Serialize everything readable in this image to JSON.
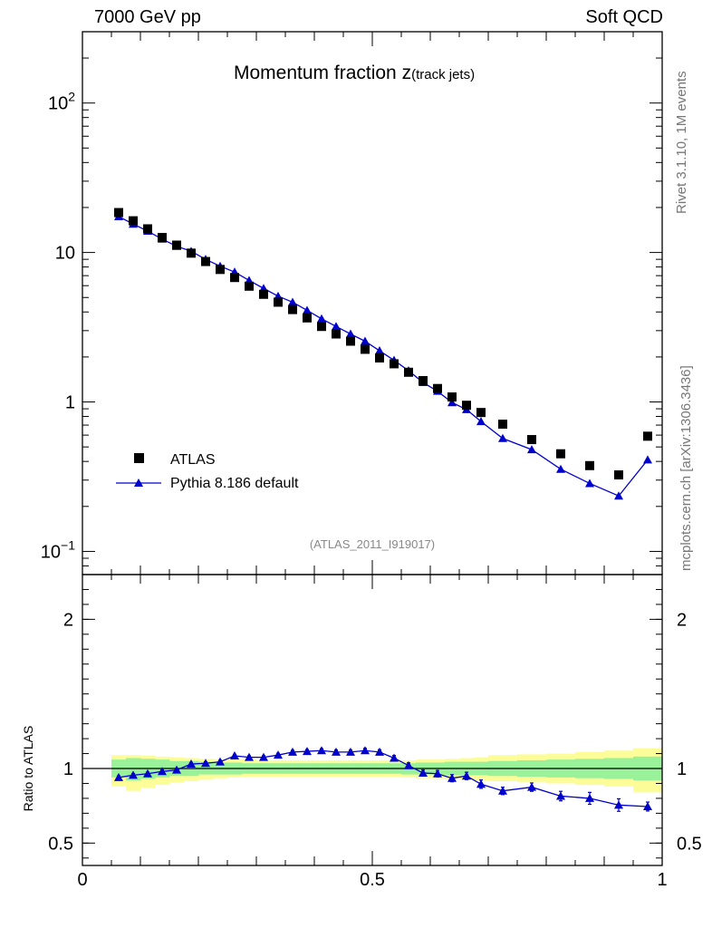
{
  "header": {
    "left": "7000 GeV pp",
    "right": "Soft QCD"
  },
  "side_labels": {
    "top": "Rivet 3.1.10,  1M events",
    "bottom": "mcplots.cern.ch [arXiv:1306.3436]"
  },
  "colors": {
    "data": "#000000",
    "mc": "#0000cc",
    "band_inner": "#99f299",
    "band_outer": "#fcfc99",
    "watermark": "#888888"
  },
  "chart_data": [
    {
      "type": "scatter",
      "title_main": "Momentum fraction ",
      "title_var": "z",
      "title_sub": "(track jets)",
      "watermark": "(ATLAS_2011_I919017)",
      "yscale": "log",
      "xlim": [
        0,
        1
      ],
      "ylim": [
        0.07,
        300
      ],
      "y_ticks": [
        {
          "v": 0.1,
          "base": "10",
          "exp": "−1"
        },
        {
          "v": 1,
          "label": "1"
        },
        {
          "v": 10,
          "label": "10"
        },
        {
          "v": 100,
          "base": "10",
          "exp": "2"
        }
      ],
      "legend": {
        "position": "middle-left",
        "entries": [
          "ATLAS",
          "Pythia 8.186 default"
        ]
      },
      "x": [
        0.0625,
        0.0875,
        0.1125,
        0.1375,
        0.1625,
        0.1875,
        0.2125,
        0.2375,
        0.2625,
        0.2875,
        0.3125,
        0.3375,
        0.3625,
        0.3875,
        0.4125,
        0.4375,
        0.4625,
        0.4875,
        0.5125,
        0.5375,
        0.5625,
        0.5875,
        0.6125,
        0.6375,
        0.6625,
        0.6875,
        0.725,
        0.775,
        0.825,
        0.875,
        0.925,
        0.975
      ],
      "series": [
        {
          "name": "ATLAS",
          "marker": "square",
          "values": [
            18.5,
            16.3,
            14.4,
            12.6,
            11.2,
            9.9,
            8.7,
            7.7,
            6.8,
            5.95,
            5.25,
            4.65,
            4.15,
            3.65,
            3.2,
            2.85,
            2.55,
            2.25,
            1.97,
            1.8,
            1.58,
            1.39,
            1.23,
            1.08,
            0.95,
            0.85,
            0.71,
            0.56,
            0.45,
            0.375,
            0.325,
            0.59
          ]
        },
        {
          "name": "Pythia 8.186 default",
          "marker": "triangle",
          "values": [
            17.4,
            15.5,
            13.9,
            12.3,
            11.0,
            10.2,
            9.0,
            8.1,
            7.4,
            6.5,
            5.75,
            5.1,
            4.65,
            4.1,
            3.6,
            3.2,
            2.85,
            2.55,
            2.2,
            1.9,
            1.62,
            1.35,
            1.18,
            0.99,
            0.89,
            0.74,
            0.57,
            0.48,
            0.355,
            0.285,
            0.235,
            0.41
          ]
        }
      ]
    },
    {
      "type": "scatter",
      "ylabel": "Ratio to ATLAS",
      "xlim": [
        0,
        1
      ],
      "ylim": [
        0.35,
        2.3
      ],
      "x_ticks": [
        {
          "v": 0,
          "label": "0"
        },
        {
          "v": 0.5,
          "label": "0.5"
        },
        {
          "v": 1,
          "label": "1"
        }
      ],
      "y_ticks": [
        {
          "v": 0.5,
          "label": "0.5"
        },
        {
          "v": 1,
          "label": "1"
        },
        {
          "v": 2,
          "label": "2"
        }
      ],
      "x_edges": [
        0.05,
        0.075,
        0.1,
        0.125,
        0.15,
        0.175,
        0.2,
        0.225,
        0.25,
        0.275,
        0.3,
        0.325,
        0.35,
        0.375,
        0.4,
        0.425,
        0.45,
        0.475,
        0.5,
        0.525,
        0.55,
        0.575,
        0.6,
        0.625,
        0.65,
        0.675,
        0.7,
        0.75,
        0.8,
        0.85,
        0.9,
        0.95,
        1.0
      ],
      "band_inner": {
        "lo": [
          0.94,
          0.92,
          0.93,
          0.94,
          0.95,
          0.95,
          0.96,
          0.96,
          0.96,
          0.965,
          0.965,
          0.965,
          0.965,
          0.965,
          0.965,
          0.965,
          0.965,
          0.965,
          0.965,
          0.965,
          0.96,
          0.96,
          0.96,
          0.955,
          0.955,
          0.955,
          0.95,
          0.945,
          0.94,
          0.935,
          0.93,
          0.92
        ],
        "hi": [
          1.06,
          1.07,
          1.065,
          1.06,
          1.05,
          1.05,
          1.045,
          1.04,
          1.04,
          1.035,
          1.035,
          1.035,
          1.035,
          1.035,
          1.035,
          1.035,
          1.035,
          1.035,
          1.035,
          1.035,
          1.035,
          1.04,
          1.04,
          1.045,
          1.045,
          1.045,
          1.05,
          1.055,
          1.06,
          1.065,
          1.07,
          1.08
        ]
      },
      "band_outer": {
        "lo": [
          0.88,
          0.85,
          0.87,
          0.89,
          0.905,
          0.915,
          0.925,
          0.935,
          0.94,
          0.945,
          0.945,
          0.945,
          0.945,
          0.945,
          0.945,
          0.945,
          0.945,
          0.945,
          0.945,
          0.945,
          0.94,
          0.935,
          0.935,
          0.93,
          0.925,
          0.92,
          0.915,
          0.91,
          0.9,
          0.89,
          0.88,
          0.84
        ],
        "hi": [
          1.09,
          1.09,
          1.085,
          1.08,
          1.075,
          1.07,
          1.065,
          1.06,
          1.06,
          1.06,
          1.055,
          1.055,
          1.055,
          1.055,
          1.055,
          1.055,
          1.055,
          1.055,
          1.055,
          1.055,
          1.055,
          1.06,
          1.06,
          1.065,
          1.07,
          1.075,
          1.09,
          1.095,
          1.1,
          1.11,
          1.12,
          1.135
        ]
      },
      "ratio": {
        "name": "Pythia 8.186 default",
        "values": [
          0.94,
          0.955,
          0.965,
          0.98,
          0.99,
          1.03,
          1.035,
          1.045,
          1.085,
          1.075,
          1.075,
          1.09,
          1.11,
          1.115,
          1.12,
          1.11,
          1.11,
          1.12,
          1.11,
          1.07,
          1.02,
          0.97,
          0.965,
          0.935,
          0.95,
          0.895,
          0.85,
          0.875,
          0.815,
          0.8,
          0.755,
          0.745
        ],
        "errors": [
          0.01,
          0.01,
          0.01,
          0.01,
          0.01,
          0.01,
          0.01,
          0.01,
          0.01,
          0.01,
          0.01,
          0.012,
          0.012,
          0.012,
          0.012,
          0.014,
          0.014,
          0.015,
          0.016,
          0.017,
          0.018,
          0.02,
          0.022,
          0.024,
          0.025,
          0.028,
          0.025,
          0.028,
          0.032,
          0.04,
          0.042,
          0.03
        ]
      }
    }
  ]
}
